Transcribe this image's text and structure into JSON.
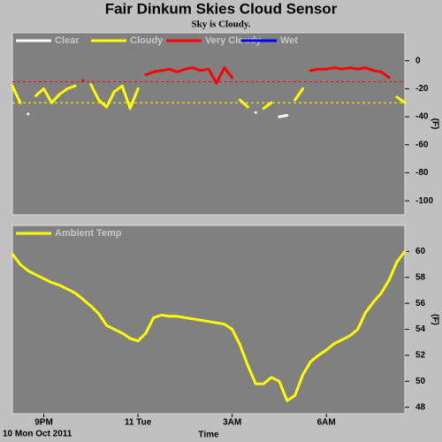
{
  "title": "Fair Dinkum Skies Cloud Sensor",
  "subtitle": "Sky is Cloudy.",
  "date": "10 Mon Oct 2011",
  "chart_data": [
    {
      "type": "line",
      "ylabel": "(F)",
      "x": [
        20,
        20.25,
        20.5,
        20.75,
        21,
        21.25,
        21.5,
        21.75,
        22,
        22.25,
        22.5,
        22.75,
        23,
        23.25,
        23.5,
        23.75,
        24,
        24.25,
        24.5,
        24.75,
        25,
        25.25,
        25.5,
        25.75,
        26,
        26.25,
        26.5,
        26.75,
        27,
        27.25,
        27.5,
        27.75,
        28,
        28.25,
        28.5,
        28.75,
        29,
        29.25,
        29.5,
        29.75,
        30,
        30.25,
        30.5,
        30.75,
        31,
        31.25,
        31.5,
        31.75,
        32,
        32.25,
        32.5
      ],
      "xlim": [
        20,
        32.5
      ],
      "ylim": [
        -110,
        20
      ],
      "yticks": [
        0,
        -20,
        -40,
        -60,
        -80,
        -100
      ],
      "thresholds": [
        {
          "value": -15,
          "color": "#ff0000"
        },
        {
          "value": -30,
          "color": "#ffff00"
        }
      ],
      "legend": "top-left",
      "series": [
        {
          "name": "Clear",
          "color": "#ffffff",
          "values": [
            null,
            null,
            -38,
            null,
            null,
            null,
            null,
            null,
            null,
            null,
            null,
            null,
            null,
            null,
            null,
            null,
            null,
            null,
            null,
            null,
            null,
            null,
            null,
            null,
            null,
            null,
            null,
            null,
            null,
            null,
            null,
            -37,
            null,
            null,
            -40,
            -39,
            null,
            null,
            null,
            null,
            null,
            null,
            null,
            null,
            null,
            null,
            null,
            null,
            null,
            null,
            null
          ]
        },
        {
          "name": "Cloudy",
          "color": "#ffff00",
          "values": [
            -18,
            -30,
            null,
            -25,
            -20,
            -30,
            -24,
            -20,
            -18,
            null,
            -17,
            -28,
            -33,
            -22,
            -18,
            -34,
            -20,
            null,
            null,
            null,
            null,
            null,
            null,
            null,
            null,
            null,
            null,
            null,
            null,
            -28,
            -33,
            null,
            -34,
            -30,
            null,
            null,
            -28,
            -20,
            null,
            null,
            null,
            null,
            null,
            null,
            null,
            null,
            null,
            null,
            null,
            -26,
            -30
          ]
        },
        {
          "name": "Very Cloudy",
          "color": "#ff0000",
          "values": [
            null,
            null,
            null,
            null,
            null,
            null,
            null,
            null,
            null,
            -14,
            null,
            null,
            null,
            null,
            null,
            null,
            null,
            -10,
            -8,
            -7,
            -6,
            -8,
            -6,
            -5,
            -7,
            -6,
            -16,
            -5,
            -12,
            null,
            null,
            null,
            null,
            null,
            null,
            null,
            null,
            null,
            -7,
            -6,
            -6,
            -5,
            -6,
            -5,
            -6,
            -5,
            -7,
            -8,
            -12,
            null,
            null
          ]
        },
        {
          "name": "Wet",
          "color": "#0000ff",
          "values": [
            null,
            null,
            null,
            null,
            null,
            null,
            null,
            null,
            null,
            null,
            null,
            null,
            null,
            null,
            null,
            null,
            null,
            null,
            null,
            null,
            null,
            null,
            null,
            null,
            null,
            null,
            null,
            null,
            null,
            null,
            null,
            null,
            null,
            null,
            null,
            null,
            null,
            null,
            null,
            null,
            null,
            null,
            null,
            null,
            null,
            null,
            null,
            null,
            null,
            null,
            null
          ]
        }
      ]
    },
    {
      "type": "line",
      "ylabel": "(F)",
      "xlabel": "Time",
      "x": [
        20,
        20.25,
        20.5,
        20.75,
        21,
        21.25,
        21.5,
        21.75,
        22,
        22.25,
        22.5,
        22.75,
        23,
        23.25,
        23.5,
        23.75,
        24,
        24.25,
        24.5,
        24.75,
        25,
        25.25,
        25.5,
        25.75,
        26,
        26.25,
        26.5,
        26.75,
        27,
        27.25,
        27.5,
        27.75,
        28,
        28.25,
        28.5,
        28.75,
        29,
        29.25,
        29.5,
        29.75,
        30,
        30.25,
        30.5,
        30.75,
        31,
        31.25,
        31.5,
        31.75,
        32,
        32.25,
        32.5
      ],
      "xlim": [
        20,
        32.5
      ],
      "xticks": [
        {
          "value": 21,
          "label": "9PM"
        },
        {
          "value": 24,
          "label": "11 Tue"
        },
        {
          "value": 27,
          "label": "3AM"
        },
        {
          "value": 30,
          "label": "6AM"
        }
      ],
      "ylim": [
        47.5,
        62
      ],
      "yticks": [
        48,
        50,
        52,
        54,
        56,
        58,
        60
      ],
      "legend": "top-left",
      "series": [
        {
          "name": "Ambient Temp",
          "color": "#ffff00",
          "values": [
            59.8,
            59.0,
            58.5,
            58.2,
            57.9,
            57.6,
            57.4,
            57.1,
            56.8,
            56.3,
            55.8,
            55.2,
            54.3,
            54.0,
            53.7,
            53.3,
            53.1,
            53.7,
            54.9,
            55.1,
            55.0,
            55.0,
            54.9,
            54.8,
            54.7,
            54.6,
            54.5,
            54.4,
            54.0,
            52.8,
            51.2,
            49.8,
            49.8,
            50.3,
            50.0,
            48.5,
            48.9,
            50.5,
            51.5,
            52.0,
            52.4,
            52.9,
            53.2,
            53.5,
            54.0,
            55.3,
            56.1,
            56.8,
            57.8,
            59.2,
            60.0
          ]
        }
      ]
    }
  ]
}
